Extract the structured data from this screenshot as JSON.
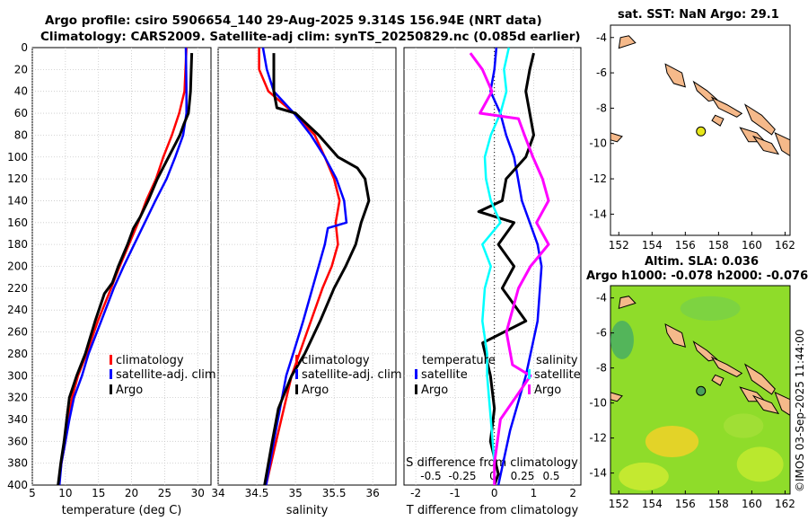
{
  "header": {
    "title_line1": "Argo profile: csiro 5906654_140 29-Aug-2025 9.314S 156.94E (NRT data)",
    "title_line2": "Climatology: CARS2009. Satellite-adj clim: synTS_20250829.nc (0.085d earlier)"
  },
  "colors": {
    "climatology": "#ff0000",
    "satellite": "#0000ff",
    "argo": "#000000",
    "sat_temp_diff": "#00ffff",
    "sat_sal_diff": "#ff00ff"
  },
  "chart_data": [
    {
      "type": "line",
      "id": "temperature",
      "xlabel": "temperature (deg C)",
      "ylim": [
        0,
        400
      ],
      "xlim": [
        5,
        32
      ],
      "xticks": [
        "5",
        "10",
        "15",
        "20",
        "25",
        "30"
      ],
      "yticks": [
        "0",
        "20",
        "40",
        "60",
        "80",
        "100",
        "120",
        "140",
        "160",
        "180",
        "200",
        "220",
        "240",
        "260",
        "280",
        "300",
        "320",
        "340",
        "360",
        "380",
        "400"
      ],
      "legend": [
        "climatology",
        "satellite-adj. clim",
        "Argo"
      ],
      "series": [
        {
          "name": "climatology",
          "depth": [
            0,
            40,
            60,
            80,
            100,
            120,
            140,
            160,
            180,
            200,
            220,
            250,
            280,
            300,
            320,
            340,
            360,
            380,
            400
          ],
          "values": [
            28.3,
            28.0,
            27.2,
            26.1,
            24.8,
            23.7,
            22.2,
            21.0,
            19.6,
            18.2,
            16.9,
            14.9,
            13.2,
            11.9,
            11.0,
            10.5,
            10.0,
            9.4,
            9.0
          ]
        },
        {
          "name": "satellite-adj. clim",
          "depth": [
            0,
            40,
            60,
            80,
            100,
            120,
            140,
            160,
            180,
            200,
            220,
            250,
            280,
            300,
            320,
            340,
            360,
            380,
            400
          ],
          "values": [
            28.2,
            28.3,
            28.3,
            27.8,
            26.6,
            25.3,
            23.6,
            22.0,
            20.4,
            18.8,
            17.3,
            15.4,
            13.5,
            12.5,
            11.3,
            10.6,
            10.0,
            9.4,
            9.1
          ]
        },
        {
          "name": "Argo",
          "depth": [
            5,
            40,
            60,
            70,
            80,
            100,
            120,
            140,
            155,
            165,
            180,
            200,
            215,
            225,
            250,
            280,
            300,
            320,
            340,
            360,
            380,
            400
          ],
          "values": [
            29.1,
            28.9,
            28.6,
            27.9,
            27.3,
            25.6,
            23.9,
            22.5,
            21.3,
            20.3,
            19.4,
            18.0,
            17.1,
            15.9,
            14.5,
            13.0,
            11.7,
            10.6,
            10.2,
            9.8,
            9.3,
            8.9
          ]
        }
      ]
    },
    {
      "type": "line",
      "id": "salinity",
      "xlabel": "salinity",
      "ylim": [
        0,
        400
      ],
      "xlim": [
        34,
        36.3
      ],
      "xticks": [
        "34",
        "34.5",
        "35",
        "35.5",
        "36"
      ],
      "legend": [
        "climatology",
        "satellite-adj. clim",
        "Argo"
      ],
      "series": [
        {
          "name": "climatology",
          "depth": [
            0,
            20,
            40,
            60,
            80,
            100,
            120,
            140,
            160,
            180,
            200,
            220,
            250,
            280,
            300,
            330,
            360,
            400
          ],
          "values": [
            34.53,
            34.53,
            34.65,
            34.98,
            35.25,
            35.38,
            35.5,
            35.57,
            35.52,
            35.55,
            35.47,
            35.35,
            35.2,
            35.05,
            34.95,
            34.85,
            34.75,
            34.62
          ]
        },
        {
          "name": "satellite-adj. clim",
          "depth": [
            0,
            20,
            40,
            60,
            80,
            100,
            120,
            140,
            160,
            165,
            180,
            200,
            220,
            250,
            280,
            300,
            330,
            360,
            400
          ],
          "values": [
            34.58,
            34.63,
            34.72,
            34.98,
            35.2,
            35.38,
            35.53,
            35.63,
            35.66,
            35.42,
            35.38,
            35.3,
            35.22,
            35.1,
            34.97,
            34.88,
            34.8,
            34.72,
            34.62
          ]
        },
        {
          "name": "Argo",
          "depth": [
            5,
            20,
            40,
            55,
            60,
            70,
            80,
            100,
            110,
            120,
            140,
            160,
            180,
            200,
            220,
            250,
            280,
            300,
            330,
            360,
            400
          ],
          "values": [
            34.72,
            34.72,
            34.72,
            34.76,
            35.0,
            35.15,
            35.3,
            35.55,
            35.8,
            35.9,
            35.95,
            35.85,
            35.78,
            35.65,
            35.5,
            35.32,
            35.12,
            34.95,
            34.78,
            34.7,
            34.6
          ]
        }
      ]
    },
    {
      "type": "line",
      "id": "difference",
      "xlabel": "T difference from climatology",
      "ylim": [
        0,
        400
      ],
      "xlim": [
        -2.3,
        2.2
      ],
      "xticks": [
        "-2",
        "-1",
        "0",
        "1",
        "2"
      ],
      "s_axis_title": "S difference from climatology",
      "s_ticks": [
        "-0.5",
        "-0.25",
        "0",
        "0.25",
        "0.5"
      ],
      "legend_titles": [
        "temperature",
        "salinity"
      ],
      "legend": [
        "satellite",
        "Argo",
        "satellite",
        "Argo"
      ],
      "series": [
        {
          "name": "temperature satellite",
          "depth": [
            0,
            20,
            40,
            60,
            80,
            100,
            120,
            140,
            160,
            180,
            200,
            250,
            300,
            350,
            400
          ],
          "values": [
            0.05,
            0.0,
            -0.1,
            0.15,
            0.3,
            0.5,
            0.6,
            0.7,
            0.9,
            1.1,
            1.2,
            1.1,
            0.8,
            0.4,
            0.1
          ]
        },
        {
          "name": "temperature Argo",
          "depth": [
            5,
            20,
            40,
            60,
            80,
            100,
            120,
            140,
            150,
            160,
            180,
            200,
            220,
            250,
            270,
            300,
            330,
            360,
            390,
            400
          ],
          "values": [
            1.0,
            0.9,
            0.8,
            0.9,
            1.0,
            0.8,
            0.3,
            0.2,
            -0.4,
            0.5,
            0.1,
            0.5,
            0.2,
            0.8,
            -0.3,
            -0.1,
            0.0,
            -0.1,
            0.1,
            0.0
          ]
        },
        {
          "name": "salinity satellite",
          "depth": [
            0,
            20,
            40,
            60,
            80,
            100,
            120,
            140,
            160,
            180,
            200,
            220,
            250,
            280,
            300,
            340,
            380,
            400
          ],
          "values": [
            0.12,
            0.08,
            0.1,
            0.05,
            -0.03,
            -0.08,
            -0.07,
            -0.03,
            0.05,
            -0.1,
            -0.03,
            -0.08,
            -0.1,
            -0.06,
            -0.06,
            -0.03,
            0.0,
            0.0
          ]
        },
        {
          "name": "salinity Argo",
          "depth": [
            5,
            20,
            40,
            60,
            65,
            80,
            100,
            120,
            140,
            160,
            180,
            200,
            220,
            260,
            290,
            300,
            340,
            380,
            400
          ],
          "values": [
            -0.2,
            -0.1,
            -0.02,
            -0.12,
            0.2,
            0.25,
            0.32,
            0.4,
            0.45,
            0.35,
            0.45,
            0.3,
            0.2,
            0.1,
            0.15,
            0.3,
            0.05,
            0.0,
            0.0
          ]
        }
      ]
    },
    {
      "type": "map",
      "id": "sst-map",
      "title": "sat. SST: NaN Argo: 29.1",
      "xlim": [
        151.5,
        162.3
      ],
      "ylim": [
        -15.2,
        -3.3
      ],
      "xticks": [
        "152",
        "154",
        "156",
        "158",
        "160",
        "162"
      ],
      "yticks": [
        "-4",
        "-6",
        "-8",
        "-10",
        "-12",
        "-14"
      ],
      "argo_position": {
        "lon": 156.94,
        "lat": -9.314
      }
    },
    {
      "type": "map",
      "id": "sla-map",
      "title_line1": "Altim. SLA: 0.036",
      "title_line2": "Argo h1000: -0.078 h2000: -0.076",
      "xlim": [
        151.5,
        162.3
      ],
      "ylim": [
        -15.2,
        -3.3
      ],
      "xticks": [
        "152",
        "154",
        "156",
        "158",
        "160",
        "162"
      ],
      "yticks": [
        "-4",
        "-6",
        "-8",
        "-10",
        "-12",
        "-14"
      ],
      "argo_position": {
        "lon": 156.94,
        "lat": -9.314
      }
    }
  ],
  "credit": "©IMOS 03-Sep-2025 11:44:00"
}
